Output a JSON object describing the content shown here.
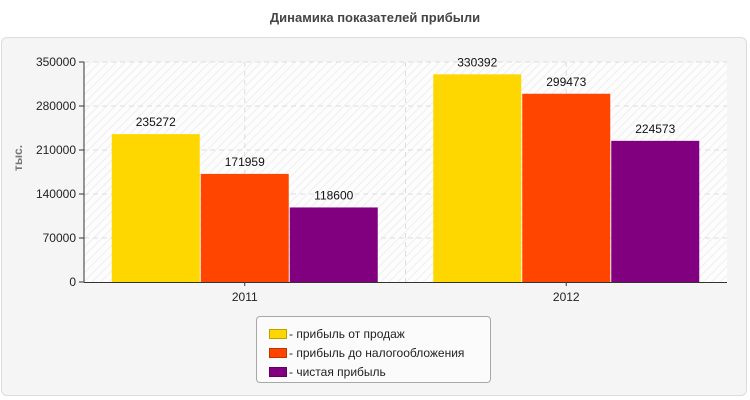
{
  "chart_data": {
    "type": "bar",
    "title": "Динамика показателей прибыли",
    "ylabel": "тыс.",
    "xlabel": "",
    "categories": [
      "2011",
      "2012"
    ],
    "ylim": [
      0,
      350000
    ],
    "yticks": [
      "0",
      "70000",
      "140000",
      "210000",
      "280000",
      "350000"
    ],
    "ytick_values": [
      0,
      70000,
      140000,
      210000,
      280000,
      350000
    ],
    "grid": true,
    "legend_position": "bottom-center",
    "series": [
      {
        "name": "прибыль от продаж",
        "legend_label": "- прибыль от продаж",
        "color": "#FFD700",
        "values": [
          235272,
          330392
        ]
      },
      {
        "name": "прибыль до налогообложения",
        "legend_label": "- прибыль до налогообложения",
        "color": "#FF4500",
        "values": [
          171959,
          299473
        ]
      },
      {
        "name": "чистая прибыль",
        "legend_label": "- чистая прибыль",
        "color": "#800080",
        "values": [
          118600,
          224573
        ]
      }
    ]
  }
}
